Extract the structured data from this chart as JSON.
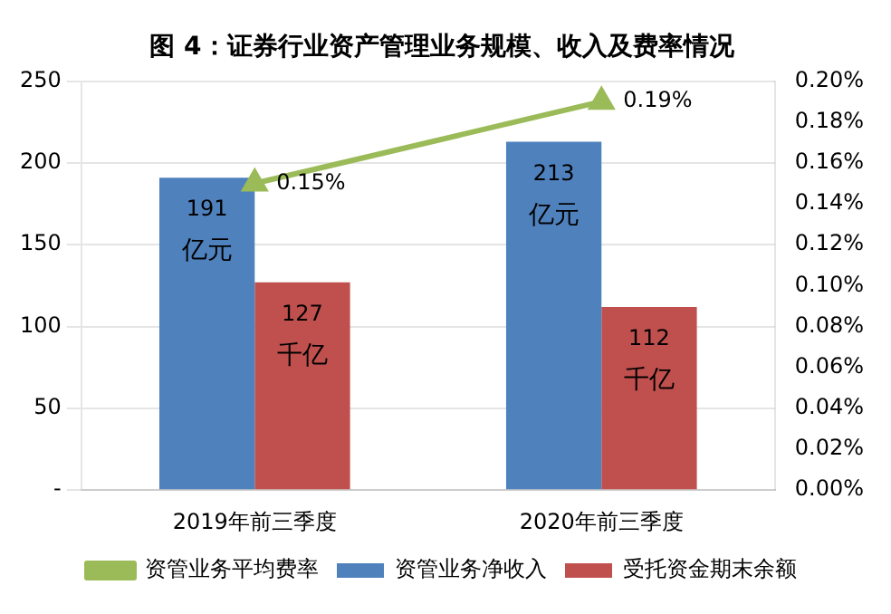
{
  "chart_data": {
    "type": "bar",
    "title": "图 4：证券行业资产管理业务规模、收入及费率情况",
    "categories": [
      "2019年前三季度",
      "2020年前三季度"
    ],
    "series": [
      {
        "name": "资管业务净收入",
        "color": "#4f81bd",
        "values": [
          191,
          213
        ],
        "value_labels": [
          "191\n亿元",
          "213\n亿元"
        ]
      },
      {
        "name": "受托资金期末余额",
        "color": "#c0504d",
        "values": [
          127,
          112
        ],
        "value_labels": [
          "127\n千亿",
          "112\n千亿"
        ]
      },
      {
        "name": "资管业务平均费率",
        "type": "line",
        "axis": "y2",
        "color": "#9bbb59",
        "marker": "triangle",
        "values": [
          0.15,
          0.19
        ],
        "value_labels": [
          "0.15%",
          "0.19%"
        ]
      }
    ],
    "ylim": [
      0,
      250
    ],
    "yticks": [
      {
        "value": 0,
        "label": "-"
      },
      50,
      100,
      150,
      200,
      250
    ],
    "y2lim": [
      0,
      0.2
    ],
    "y2ticks": [
      {
        "value": 0,
        "label": "0.00%"
      },
      {
        "value": 0.02,
        "label": "0.02%"
      },
      {
        "value": 0.04,
        "label": "0.04%"
      },
      {
        "value": 0.06,
        "label": "0.06%"
      },
      {
        "value": 0.08,
        "label": "0.08%"
      },
      {
        "value": 0.1,
        "label": "0.10%"
      },
      {
        "value": 0.12,
        "label": "0.12%"
      },
      {
        "value": 0.14,
        "label": "0.14%"
      },
      {
        "value": 0.16,
        "label": "0.16%"
      },
      {
        "value": 0.18,
        "label": "0.18%"
      },
      {
        "value": 0.2,
        "label": "0.20%"
      }
    ],
    "grid": "y",
    "legend": "bottom"
  }
}
